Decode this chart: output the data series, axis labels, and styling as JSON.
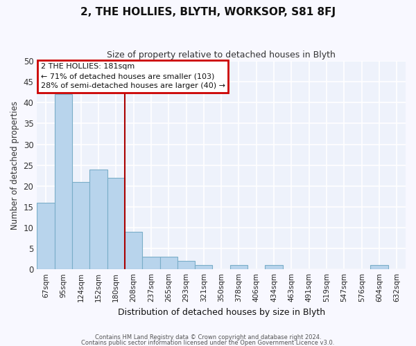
{
  "title": "2, THE HOLLIES, BLYTH, WORKSOP, S81 8FJ",
  "subtitle": "Size of property relative to detached houses in Blyth",
  "xlabel": "Distribution of detached houses by size in Blyth",
  "ylabel": "Number of detached properties",
  "categories": [
    "67sqm",
    "95sqm",
    "124sqm",
    "152sqm",
    "180sqm",
    "208sqm",
    "237sqm",
    "265sqm",
    "293sqm",
    "321sqm",
    "350sqm",
    "378sqm",
    "406sqm",
    "434sqm",
    "463sqm",
    "491sqm",
    "519sqm",
    "547sqm",
    "576sqm",
    "604sqm",
    "632sqm"
  ],
  "values": [
    16,
    42,
    21,
    24,
    22,
    9,
    3,
    3,
    2,
    1,
    0,
    1,
    0,
    1,
    0,
    0,
    0,
    0,
    0,
    1,
    0
  ],
  "bar_color": "#b8d4ec",
  "bar_edge_color": "#7aaec8",
  "vline_x_index": 4,
  "vline_color": "#aa0000",
  "annotation_title": "2 THE HOLLIES: 181sqm",
  "annotation_line1": "← 71% of detached houses are smaller (103)",
  "annotation_line2": "28% of semi-detached houses are larger (40) →",
  "annotation_box_color": "#cc0000",
  "ylim": [
    0,
    50
  ],
  "yticks": [
    0,
    5,
    10,
    15,
    20,
    25,
    30,
    35,
    40,
    45,
    50
  ],
  "background_color": "#eef2fb",
  "grid_color": "#ffffff",
  "fig_bg_color": "#f8f8ff",
  "footer1": "Contains HM Land Registry data © Crown copyright and database right 2024.",
  "footer2": "Contains public sector information licensed under the Open Government Licence v3.0."
}
